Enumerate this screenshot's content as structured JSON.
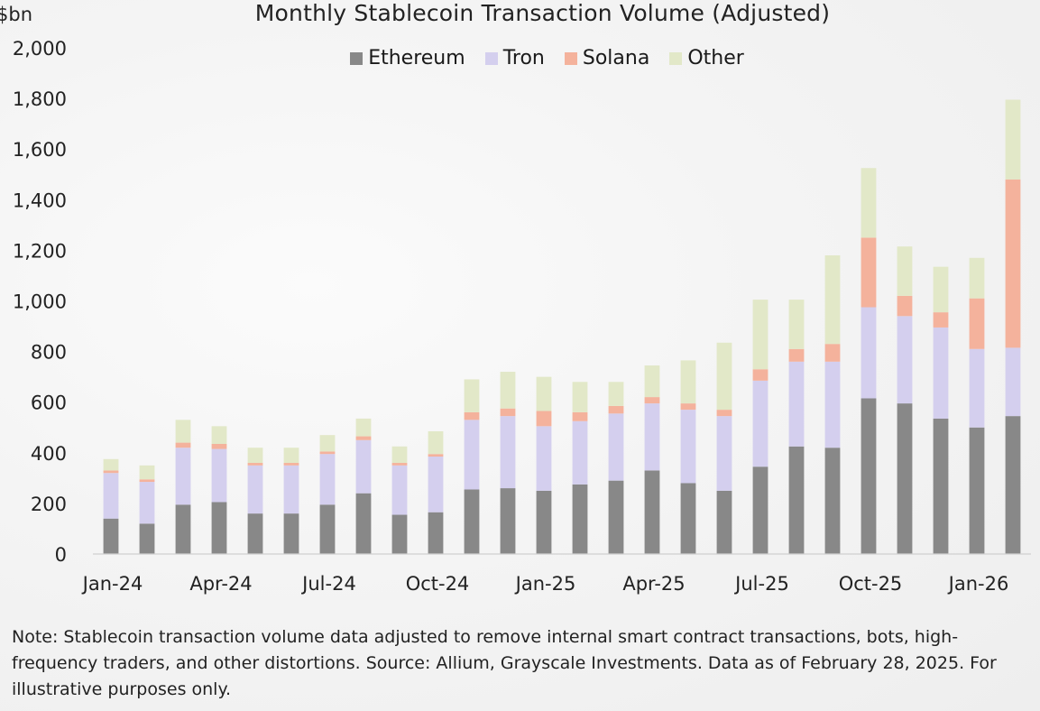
{
  "chart_data": {
    "type": "bar",
    "stacked": true,
    "title": "Monthly Stablecoin Transaction Volume (Adjusted)",
    "ylabel": "$bn",
    "ylim": [
      0,
      2000
    ],
    "yticks": [
      0,
      200,
      400,
      600,
      800,
      1000,
      1200,
      1400,
      1600,
      1800,
      2000
    ],
    "ytick_labels": [
      "0",
      "200",
      "400",
      "600",
      "800",
      "1,000",
      "1,200",
      "1,400",
      "1,600",
      "1,800",
      "2,000"
    ],
    "x_tick_labels": [
      {
        "index": 0,
        "label": "Jan-24"
      },
      {
        "index": 3,
        "label": "Apr-24"
      },
      {
        "index": 6,
        "label": "Jul-24"
      },
      {
        "index": 9,
        "label": "Oct-24"
      },
      {
        "index": 12,
        "label": "Jan-25"
      },
      {
        "index": 15,
        "label": "Apr-25"
      },
      {
        "index": 18,
        "label": "Jul-25"
      },
      {
        "index": 21,
        "label": "Oct-25"
      },
      {
        "index": 24,
        "label": "Jan-26"
      }
    ],
    "categories": [
      "Jan-24",
      "Feb-24",
      "Mar-24",
      "Apr-24",
      "May-24",
      "Jun-24",
      "Jul-24",
      "Aug-24",
      "Sep-24",
      "Oct-24",
      "Nov-24",
      "Dec-24",
      "Jan-25",
      "Feb-25",
      "Mar-25",
      "Apr-25",
      "May-25",
      "Jun-25",
      "Jul-25",
      "Aug-25",
      "Sep-25",
      "Oct-25",
      "Nov-25",
      "Dec-25",
      "Jan-26",
      "Feb-26"
    ],
    "legend_position": "top-center",
    "grid": false,
    "series": [
      {
        "name": "Ethereum",
        "color": "#888888",
        "values": [
          140,
          120,
          195,
          205,
          160,
          160,
          195,
          240,
          155,
          165,
          255,
          260,
          250,
          275,
          290,
          330,
          280,
          250,
          345,
          425,
          420,
          615,
          595,
          535,
          500,
          545
        ]
      },
      {
        "name": "Tron",
        "color": "#d4cfee",
        "values": [
          180,
          165,
          225,
          210,
          190,
          190,
          200,
          210,
          195,
          220,
          275,
          285,
          255,
          250,
          265,
          265,
          290,
          295,
          340,
          335,
          340,
          360,
          345,
          360,
          310,
          270
        ]
      },
      {
        "name": "Solana",
        "color": "#f4b29c",
        "values": [
          10,
          10,
          20,
          20,
          10,
          10,
          10,
          15,
          10,
          10,
          30,
          30,
          60,
          35,
          30,
          25,
          25,
          25,
          45,
          50,
          70,
          275,
          80,
          60,
          200,
          665
        ]
      },
      {
        "name": "Other",
        "color": "#e2e8c8",
        "values": [
          45,
          55,
          90,
          70,
          60,
          60,
          65,
          70,
          65,
          90,
          130,
          145,
          135,
          120,
          95,
          125,
          170,
          265,
          275,
          195,
          350,
          275,
          195,
          180,
          160,
          315
        ]
      }
    ]
  },
  "note": "Note: Stablecoin transaction volume data adjusted to remove internal smart contract transactions, bots, high-frequency traders, and other distortions. Source: Allium, Grayscale Investments. Data as of February 28, 2025. For illustrative purposes only."
}
